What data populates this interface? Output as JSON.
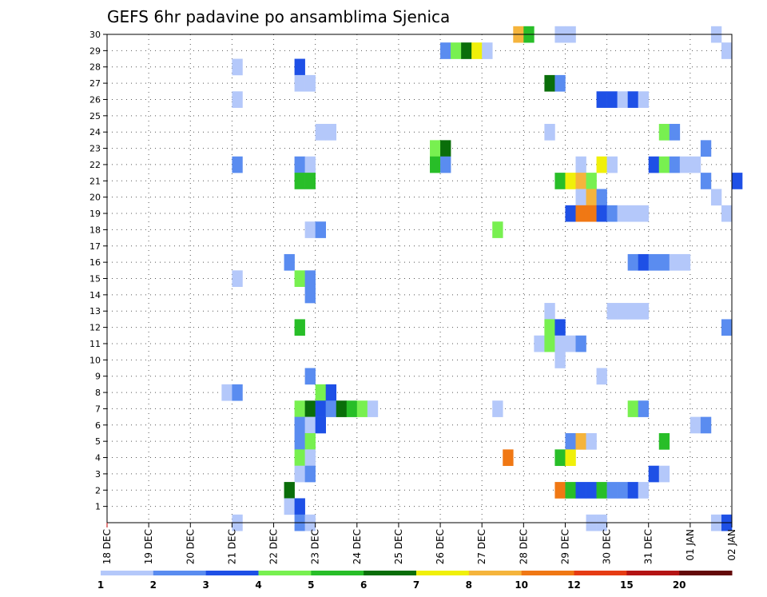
{
  "chart_data": {
    "type": "heatmap",
    "title": "GEFS 6hr padavine po ansamblima Sjenica",
    "members": [
      1,
      2,
      3,
      4,
      5,
      6,
      7,
      8,
      9,
      10,
      11,
      12,
      13,
      14,
      15,
      16,
      17,
      18,
      19,
      20,
      21,
      22,
      23,
      24,
      25,
      26,
      27,
      28,
      29,
      30
    ],
    "x_tick_labels": [
      "18 DEC",
      "19 DEC",
      "20 DEC",
      "21 DEC",
      "22 DEC",
      "23 DEC",
      "24 DEC",
      "25 DEC",
      "26 DEC",
      "27 DEC",
      "28 DEC",
      "29 DEC",
      "30 DEC",
      "31 DEC",
      "01 JAN",
      "02 JAN"
    ],
    "grid": true,
    "colorbar": {
      "position": "bottom",
      "labels": [
        "1",
        "2",
        "3",
        "4",
        "5",
        "6",
        "7",
        "8",
        "10",
        "12",
        "15",
        "20"
      ],
      "colors": [
        "#b4c8fa",
        "#5a8cf0",
        "#1e50e6",
        "#78f050",
        "#28be28",
        "#0a6e0a",
        "#f0f00a",
        "#f5b43c",
        "#f07814",
        "#e63c14",
        "#b41414",
        "#640a0a"
      ]
    },
    "cells": [
      {
        "m": 30,
        "s": 39,
        "c": 8
      },
      {
        "m": 30,
        "s": 40,
        "c": 5
      },
      {
        "m": 30,
        "s": 43,
        "c": 1
      },
      {
        "m": 30,
        "s": 44,
        "c": 1
      },
      {
        "m": 30,
        "s": 58,
        "c": 1
      },
      {
        "m": 29,
        "s": 32,
        "c": 2
      },
      {
        "m": 29,
        "s": 33,
        "c": 4
      },
      {
        "m": 29,
        "s": 34,
        "c": 6
      },
      {
        "m": 29,
        "s": 35,
        "c": 7
      },
      {
        "m": 29,
        "s": 36,
        "c": 1
      },
      {
        "m": 29,
        "s": 59,
        "c": 1
      },
      {
        "m": 28,
        "s": 12,
        "c": 1
      },
      {
        "m": 28,
        "s": 18,
        "c": 3
      },
      {
        "m": 27,
        "s": 18,
        "c": 1
      },
      {
        "m": 27,
        "s": 19,
        "c": 1
      },
      {
        "m": 27,
        "s": 42,
        "c": 6
      },
      {
        "m": 27,
        "s": 43,
        "c": 2
      },
      {
        "m": 26,
        "s": 12,
        "c": 1
      },
      {
        "m": 26,
        "s": 47,
        "c": 3
      },
      {
        "m": 26,
        "s": 48,
        "c": 3
      },
      {
        "m": 26,
        "s": 49,
        "c": 1
      },
      {
        "m": 26,
        "s": 50,
        "c": 3
      },
      {
        "m": 26,
        "s": 51,
        "c": 1
      },
      {
        "m": 24,
        "s": 20,
        "c": 1
      },
      {
        "m": 24,
        "s": 21,
        "c": 1
      },
      {
        "m": 24,
        "s": 42,
        "c": 1
      },
      {
        "m": 24,
        "s": 53,
        "c": 4
      },
      {
        "m": 24,
        "s": 54,
        "c": 2
      },
      {
        "m": 23,
        "s": 31,
        "c": 4
      },
      {
        "m": 23,
        "s": 32,
        "c": 6
      },
      {
        "m": 23,
        "s": 57,
        "c": 2
      },
      {
        "m": 22,
        "s": 12,
        "c": 2
      },
      {
        "m": 22,
        "s": 18,
        "c": 2
      },
      {
        "m": 22,
        "s": 19,
        "c": 1
      },
      {
        "m": 22,
        "s": 31,
        "c": 5
      },
      {
        "m": 22,
        "s": 32,
        "c": 2
      },
      {
        "m": 22,
        "s": 45,
        "c": 1
      },
      {
        "m": 22,
        "s": 47,
        "c": 7
      },
      {
        "m": 22,
        "s": 48,
        "c": 1
      },
      {
        "m": 22,
        "s": 52,
        "c": 3
      },
      {
        "m": 22,
        "s": 53,
        "c": 4
      },
      {
        "m": 22,
        "s": 54,
        "c": 2
      },
      {
        "m": 22,
        "s": 55,
        "c": 1
      },
      {
        "m": 22,
        "s": 56,
        "c": 1
      },
      {
        "m": 21,
        "s": 18,
        "c": 5
      },
      {
        "m": 21,
        "s": 19,
        "c": 5
      },
      {
        "m": 21,
        "s": 43,
        "c": 5
      },
      {
        "m": 21,
        "s": 44,
        "c": 7
      },
      {
        "m": 21,
        "s": 45,
        "c": 8
      },
      {
        "m": 21,
        "s": 46,
        "c": 4
      },
      {
        "m": 21,
        "s": 57,
        "c": 2
      },
      {
        "m": 21,
        "s": 60,
        "c": 3
      },
      {
        "m": 20,
        "s": 45,
        "c": 1
      },
      {
        "m": 20,
        "s": 46,
        "c": 8
      },
      {
        "m": 20,
        "s": 47,
        "c": 2
      },
      {
        "m": 20,
        "s": 58,
        "c": 1
      },
      {
        "m": 19,
        "s": 44,
        "c": 3
      },
      {
        "m": 19,
        "s": 45,
        "c": 9
      },
      {
        "m": 19,
        "s": 46,
        "c": 9
      },
      {
        "m": 19,
        "s": 47,
        "c": 3
      },
      {
        "m": 19,
        "s": 48,
        "c": 2
      },
      {
        "m": 19,
        "s": 49,
        "c": 1
      },
      {
        "m": 19,
        "s": 50,
        "c": 1
      },
      {
        "m": 19,
        "s": 51,
        "c": 1
      },
      {
        "m": 19,
        "s": 59,
        "c": 1
      },
      {
        "m": 18,
        "s": 19,
        "c": 1
      },
      {
        "m": 18,
        "s": 20,
        "c": 2
      },
      {
        "m": 18,
        "s": 37,
        "c": 4
      },
      {
        "m": 16,
        "s": 17,
        "c": 2
      },
      {
        "m": 16,
        "s": 50,
        "c": 2
      },
      {
        "m": 16,
        "s": 51,
        "c": 3
      },
      {
        "m": 16,
        "s": 52,
        "c": 2
      },
      {
        "m": 16,
        "s": 53,
        "c": 2
      },
      {
        "m": 16,
        "s": 54,
        "c": 1
      },
      {
        "m": 16,
        "s": 55,
        "c": 1
      },
      {
        "m": 15,
        "s": 12,
        "c": 1
      },
      {
        "m": 15,
        "s": 18,
        "c": 4
      },
      {
        "m": 15,
        "s": 19,
        "c": 2
      },
      {
        "m": 14,
        "s": 19,
        "c": 2
      },
      {
        "m": 13,
        "s": 42,
        "c": 1
      },
      {
        "m": 13,
        "s": 48,
        "c": 1
      },
      {
        "m": 13,
        "s": 49,
        "c": 1
      },
      {
        "m": 13,
        "s": 50,
        "c": 1
      },
      {
        "m": 13,
        "s": 51,
        "c": 1
      },
      {
        "m": 12,
        "s": 18,
        "c": 5
      },
      {
        "m": 12,
        "s": 42,
        "c": 4
      },
      {
        "m": 12,
        "s": 43,
        "c": 3
      },
      {
        "m": 12,
        "s": 59,
        "c": 2
      },
      {
        "m": 11,
        "s": 41,
        "c": 1
      },
      {
        "m": 11,
        "s": 42,
        "c": 4
      },
      {
        "m": 11,
        "s": 43,
        "c": 1
      },
      {
        "m": 11,
        "s": 44,
        "c": 1
      },
      {
        "m": 11,
        "s": 45,
        "c": 2
      },
      {
        "m": 10,
        "s": 43,
        "c": 1
      },
      {
        "m": 9,
        "s": 19,
        "c": 2
      },
      {
        "m": 9,
        "s": 47,
        "c": 1
      },
      {
        "m": 8,
        "s": 11,
        "c": 1
      },
      {
        "m": 8,
        "s": 12,
        "c": 2
      },
      {
        "m": 8,
        "s": 20,
        "c": 4
      },
      {
        "m": 8,
        "s": 21,
        "c": 3
      },
      {
        "m": 7,
        "s": 18,
        "c": 4
      },
      {
        "m": 7,
        "s": 19,
        "c": 6
      },
      {
        "m": 7,
        "s": 20,
        "c": 3
      },
      {
        "m": 7,
        "s": 21,
        "c": 2
      },
      {
        "m": 7,
        "s": 22,
        "c": 6
      },
      {
        "m": 7,
        "s": 23,
        "c": 5
      },
      {
        "m": 7,
        "s": 24,
        "c": 4
      },
      {
        "m": 7,
        "s": 25,
        "c": 1
      },
      {
        "m": 7,
        "s": 37,
        "c": 1
      },
      {
        "m": 7,
        "s": 50,
        "c": 4
      },
      {
        "m": 7,
        "s": 51,
        "c": 2
      },
      {
        "m": 6,
        "s": 18,
        "c": 2
      },
      {
        "m": 6,
        "s": 19,
        "c": 1
      },
      {
        "m": 6,
        "s": 20,
        "c": 3
      },
      {
        "m": 6,
        "s": 56,
        "c": 1
      },
      {
        "m": 6,
        "s": 57,
        "c": 2
      },
      {
        "m": 5,
        "s": 18,
        "c": 2
      },
      {
        "m": 5,
        "s": 19,
        "c": 4
      },
      {
        "m": 5,
        "s": 44,
        "c": 2
      },
      {
        "m": 5,
        "s": 45,
        "c": 8
      },
      {
        "m": 5,
        "s": 46,
        "c": 1
      },
      {
        "m": 5,
        "s": 53,
        "c": 5
      },
      {
        "m": 4,
        "s": 18,
        "c": 4
      },
      {
        "m": 4,
        "s": 19,
        "c": 1
      },
      {
        "m": 4,
        "s": 38,
        "c": 9
      },
      {
        "m": 4,
        "s": 43,
        "c": 5
      },
      {
        "m": 4,
        "s": 44,
        "c": 7
      },
      {
        "m": 3,
        "s": 18,
        "c": 1
      },
      {
        "m": 3,
        "s": 19,
        "c": 2
      },
      {
        "m": 3,
        "s": 52,
        "c": 3
      },
      {
        "m": 3,
        "s": 53,
        "c": 1
      },
      {
        "m": 2,
        "s": 17,
        "c": 6
      },
      {
        "m": 2,
        "s": 43,
        "c": 9
      },
      {
        "m": 2,
        "s": 44,
        "c": 5
      },
      {
        "m": 2,
        "s": 45,
        "c": 3
      },
      {
        "m": 2,
        "s": 46,
        "c": 3
      },
      {
        "m": 2,
        "s": 47,
        "c": 5
      },
      {
        "m": 2,
        "s": 48,
        "c": 2
      },
      {
        "m": 2,
        "s": 49,
        "c": 2
      },
      {
        "m": 2,
        "s": 50,
        "c": 3
      },
      {
        "m": 2,
        "s": 51,
        "c": 1
      },
      {
        "m": 1,
        "s": 17,
        "c": 1
      },
      {
        "m": 1,
        "s": 18,
        "c": 3
      },
      {
        "m": 0,
        "s": 12,
        "c": 1
      },
      {
        "m": 0,
        "s": 18,
        "c": 2
      },
      {
        "m": 0,
        "s": 19,
        "c": 1
      },
      {
        "m": 0,
        "s": 46,
        "c": 1
      },
      {
        "m": 0,
        "s": 47,
        "c": 1
      },
      {
        "m": 0,
        "s": 58,
        "c": 1
      },
      {
        "m": 0,
        "s": 59,
        "c": 3
      }
    ]
  }
}
